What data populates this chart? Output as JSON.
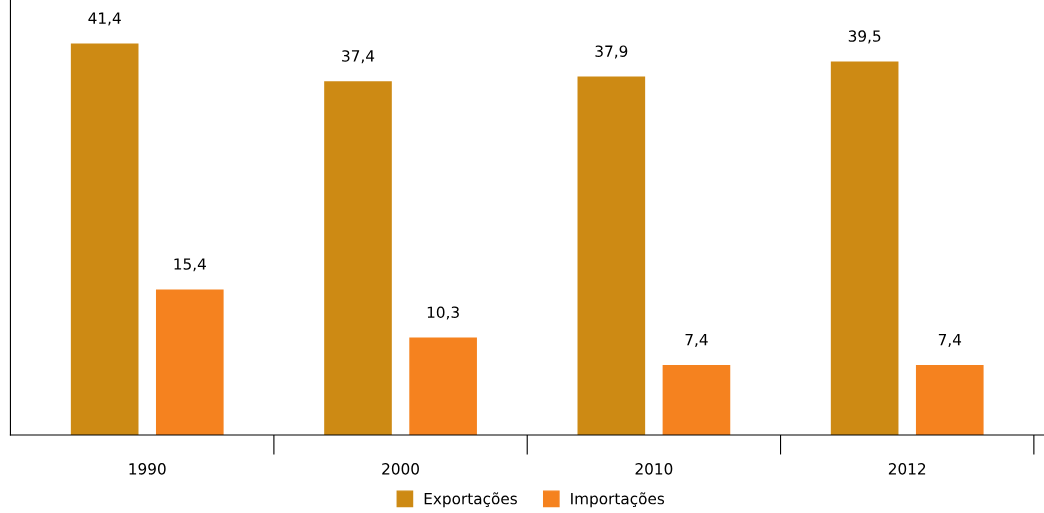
{
  "chart_data": {
    "type": "bar",
    "categories": [
      "1990",
      "2000",
      "2010",
      "2012"
    ],
    "series": [
      {
        "name": "Exportações",
        "color": "#cd8a14",
        "values": [
          41.4,
          37.4,
          37.9,
          39.5
        ],
        "value_labels": [
          "41,4",
          "37,4",
          "37,9",
          "39,5"
        ]
      },
      {
        "name": "Importações",
        "color": "#f5821f",
        "values": [
          15.4,
          10.3,
          7.4,
          7.4
        ],
        "value_labels": [
          "15,4",
          "10,3",
          "7,4",
          "7,4"
        ]
      }
    ],
    "ylim": [
      0,
      46
    ],
    "tick_labels": "x",
    "grid": false,
    "legend": "bottom",
    "marker": "square"
  }
}
